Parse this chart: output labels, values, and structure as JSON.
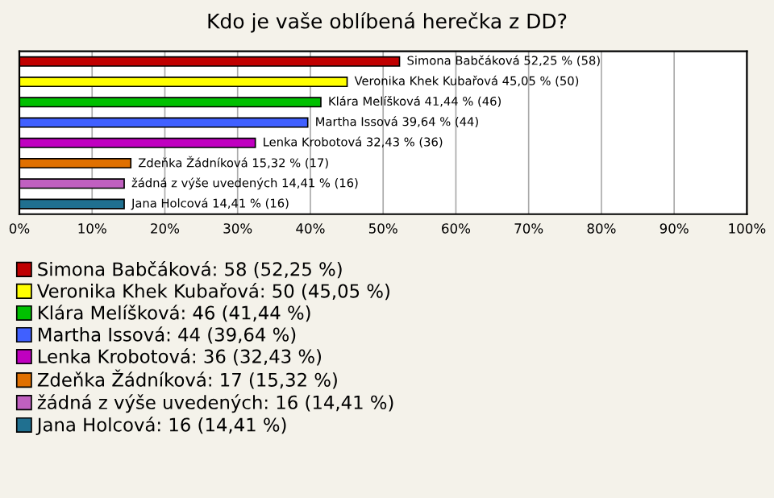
{
  "chart_data": {
    "type": "bar",
    "orientation": "horizontal",
    "title": "Kdo je vaše oblíbená herečka z DD?",
    "categories": [
      null,
      null,
      null,
      null,
      null,
      null,
      null,
      null
    ],
    "series": [
      {
        "name": "Simona Babčáková: 58 (52,25 %)",
        "color": "#c00000",
        "values": [
          52.25,
          null,
          null,
          null,
          null,
          null,
          null,
          null
        ],
        "value_labels": [
          "Simona Babčáková 52,25 % (58)",
          null,
          null,
          null,
          null,
          null,
          null,
          null
        ]
      },
      {
        "name": "Veronika Khek Kubařová: 50 (45,05 %)",
        "color": "#ffff00",
        "values": [
          null,
          45.05,
          null,
          null,
          null,
          null,
          null,
          null
        ],
        "value_labels": [
          null,
          "Veronika Khek Kubařová 45,05 % (50)",
          null,
          null,
          null,
          null,
          null,
          null
        ]
      },
      {
        "name": "Klára Melíšková: 46 (41,44 %)",
        "color": "#00c000",
        "values": [
          null,
          null,
          41.44,
          null,
          null,
          null,
          null,
          null
        ],
        "value_labels": [
          null,
          null,
          "Klára Melíšková 41,44 % (46)",
          null,
          null,
          null,
          null,
          null
        ]
      },
      {
        "name": "Martha Issová: 44 (39,64 %)",
        "color": "#4060ff",
        "values": [
          null,
          null,
          null,
          39.64,
          null,
          null,
          null,
          null
        ],
        "value_labels": [
          null,
          null,
          null,
          "Martha Issová 39,64 % (44)",
          null,
          null,
          null,
          null
        ]
      },
      {
        "name": "Lenka Krobotová: 36 (32,43 %)",
        "color": "#c000c0",
        "values": [
          null,
          null,
          null,
          null,
          32.43,
          null,
          null,
          null
        ],
        "value_labels": [
          null,
          null,
          null,
          null,
          "Lenka Krobotová 32,43 % (36)",
          null,
          null,
          null
        ]
      },
      {
        "name": "Zdeňka Žádníková: 17 (15,32 %)",
        "color": "#e07000",
        "values": [
          null,
          null,
          null,
          null,
          null,
          15.32,
          null,
          null
        ],
        "value_labels": [
          null,
          null,
          null,
          null,
          null,
          "Zdeňka Žádníková 15,32 % (17)",
          null,
          null
        ]
      },
      {
        "name": "žádná z výše uvedených: 16 (14,41 %)",
        "color": "#c060c0",
        "values": [
          null,
          null,
          null,
          null,
          null,
          null,
          14.41,
          null
        ],
        "value_labels": [
          null,
          null,
          null,
          null,
          null,
          null,
          "žádná z výše uvedených 14,41 % (16)",
          null
        ]
      },
      {
        "name": "Jana Holcová: 16 (14,41 %)",
        "color": "#207090",
        "values": [
          null,
          null,
          null,
          null,
          null,
          null,
          null,
          14.41
        ],
        "value_labels": [
          null,
          null,
          null,
          null,
          null,
          null,
          null,
          "Jana Holcová 14,41 % (16)"
        ]
      }
    ],
    "xlim": [
      0,
      100
    ],
    "xticks": [
      {
        "value": 0,
        "label": "0%"
      },
      {
        "value": 10,
        "label": "10%"
      },
      {
        "value": 20,
        "label": "20%"
      },
      {
        "value": 30,
        "label": "30%"
      },
      {
        "value": 40,
        "label": "40%"
      },
      {
        "value": 50,
        "label": "50%"
      },
      {
        "value": 60,
        "label": "60%"
      },
      {
        "value": 70,
        "label": "70%"
      },
      {
        "value": 80,
        "label": "80%"
      },
      {
        "value": 90,
        "label": "90%"
      },
      {
        "value": 100,
        "label": "100%"
      }
    ],
    "grid": "x",
    "legend": "bottom"
  }
}
